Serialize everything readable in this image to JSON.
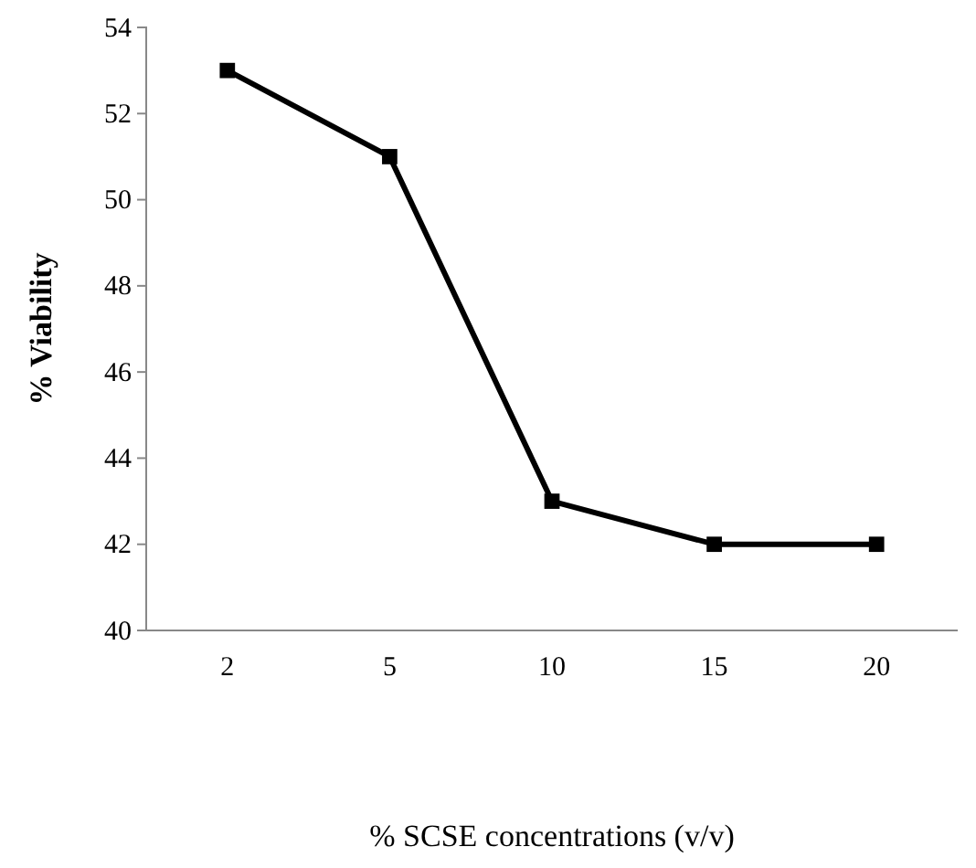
{
  "chart_data": {
    "type": "line",
    "xlabel": "% SCSE concentrations (v/v)",
    "ylabel": "% Viability",
    "categories": [
      "2",
      "5",
      "10",
      "15",
      "20"
    ],
    "series": [
      {
        "color": "#000000",
        "values": [
          53,
          51,
          43,
          42,
          42
        ]
      }
    ],
    "ylim": [
      40,
      54
    ],
    "yticks": [
      40,
      42,
      44,
      46,
      48,
      50,
      52,
      54
    ],
    "marker": "square",
    "line_style": "solid",
    "grid": false
  }
}
